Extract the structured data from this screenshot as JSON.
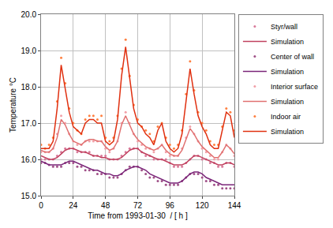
{
  "chart_data": {
    "type": "line",
    "x_label": "Time from 1993-01-30  / [ h ]",
    "y_label": "Temperature °C",
    "x": [
      0,
      3,
      6,
      9,
      12,
      15,
      18,
      21,
      24,
      27,
      30,
      33,
      36,
      39,
      42,
      45,
      48,
      51,
      54,
      57,
      60,
      63,
      66,
      69,
      72,
      75,
      78,
      81,
      84,
      87,
      90,
      93,
      96,
      99,
      102,
      105,
      108,
      111,
      114,
      117,
      120,
      123,
      126,
      129,
      132,
      135,
      138,
      141,
      144
    ],
    "xlim": [
      0,
      144
    ],
    "xticks": [
      0,
      24,
      48,
      72,
      96,
      120,
      144
    ],
    "ylim": [
      15,
      20
    ],
    "yticks": [
      {
        "value": 15,
        "label": "15.0"
      },
      {
        "value": 16,
        "label": "16.0"
      },
      {
        "value": 17,
        "label": "17.0"
      },
      {
        "value": 18,
        "label": "18.0"
      },
      {
        "value": 19,
        "label": "19.0"
      },
      {
        "value": 20,
        "label": "20.0"
      }
    ],
    "grid": true,
    "legend": "right",
    "series": [
      {
        "name": "Styr/wall",
        "type": "scatter",
        "marker": "dot",
        "color": "#d97a9a",
        "values": [
          16.0,
          16.0,
          16.0,
          16.0,
          16.1,
          16.2,
          16.3,
          16.3,
          16.3,
          16.2,
          16.2,
          16.2,
          16.2,
          16.1,
          16.1,
          16.1,
          16.1,
          16.0,
          16.0,
          16.0,
          16.1,
          16.2,
          16.3,
          16.3,
          16.3,
          16.2,
          16.1,
          16.1,
          16.0,
          16.0,
          16.0,
          16.0,
          15.9,
          15.8,
          15.8,
          15.8,
          15.9,
          16.0,
          16.1,
          16.1,
          16.0,
          16.0,
          15.9,
          15.9,
          15.8,
          15.8,
          15.9,
          15.9,
          15.8
        ]
      },
      {
        "name": "Simulation",
        "type": "line",
        "line_style": "solid",
        "color": "#c0405e",
        "values": [
          16.1,
          16.05,
          16.0,
          16.0,
          16.05,
          16.15,
          16.25,
          16.3,
          16.3,
          16.25,
          16.2,
          16.2,
          16.15,
          16.1,
          16.1,
          16.05,
          16.05,
          16.0,
          16.0,
          16.0,
          16.05,
          16.15,
          16.25,
          16.3,
          16.3,
          16.2,
          16.15,
          16.1,
          16.05,
          16.0,
          16.0,
          15.95,
          15.9,
          15.85,
          15.85,
          15.85,
          15.9,
          16.0,
          16.1,
          16.1,
          16.05,
          16.0,
          15.95,
          15.9,
          15.85,
          15.85,
          15.9,
          15.9,
          15.85
        ]
      },
      {
        "name": "Center of wall",
        "type": "scatter",
        "marker": "dot",
        "color": "#a05088",
        "values": [
          15.9,
          15.9,
          15.85,
          15.8,
          15.8,
          15.8,
          15.9,
          15.9,
          15.9,
          15.8,
          15.8,
          15.7,
          15.7,
          15.7,
          15.6,
          15.6,
          15.6,
          15.5,
          15.5,
          15.5,
          15.6,
          15.7,
          15.8,
          15.8,
          15.8,
          15.7,
          15.6,
          15.5,
          15.5,
          15.4,
          15.4,
          15.3,
          15.3,
          15.3,
          15.3,
          15.4,
          15.5,
          15.6,
          15.6,
          15.6,
          15.5,
          15.4,
          15.4,
          15.3,
          15.3,
          15.2,
          15.2,
          15.2,
          15.2
        ]
      },
      {
        "name": "Simulation",
        "type": "line",
        "line_style": "solid",
        "color": "#7a2478",
        "values": [
          15.95,
          15.9,
          15.85,
          15.85,
          15.85,
          15.85,
          15.9,
          15.95,
          15.95,
          15.9,
          15.85,
          15.8,
          15.75,
          15.7,
          15.7,
          15.65,
          15.6,
          15.6,
          15.55,
          15.55,
          15.6,
          15.7,
          15.75,
          15.8,
          15.8,
          15.75,
          15.7,
          15.6,
          15.55,
          15.5,
          15.45,
          15.4,
          15.35,
          15.35,
          15.35,
          15.4,
          15.5,
          15.6,
          15.65,
          15.65,
          15.6,
          15.5,
          15.45,
          15.4,
          15.35,
          15.3,
          15.3,
          15.3,
          15.3
        ]
      },
      {
        "name": "Interior surface",
        "type": "scatter",
        "marker": "dot",
        "color": "#f2a0a8",
        "values": [
          16.2,
          16.2,
          16.2,
          16.3,
          16.7,
          17.2,
          17.0,
          16.7,
          16.5,
          16.4,
          16.4,
          16.5,
          16.5,
          16.5,
          16.5,
          16.5,
          16.3,
          16.2,
          16.3,
          16.5,
          17.0,
          17.3,
          17.0,
          16.7,
          16.5,
          16.4,
          16.3,
          16.3,
          16.2,
          16.3,
          16.4,
          16.2,
          16.1,
          16.1,
          16.1,
          16.3,
          16.6,
          16.9,
          16.7,
          16.5,
          16.3,
          16.2,
          16.1,
          16.0,
          16.0,
          16.2,
          16.4,
          16.3,
          16.1
        ]
      },
      {
        "name": "Simulation",
        "type": "line",
        "line_style": "solid",
        "color": "#e07070",
        "values": [
          16.25,
          16.2,
          16.2,
          16.3,
          16.6,
          17.1,
          16.95,
          16.7,
          16.5,
          16.45,
          16.4,
          16.5,
          16.55,
          16.55,
          16.5,
          16.5,
          16.35,
          16.25,
          16.3,
          16.5,
          16.95,
          17.2,
          16.95,
          16.7,
          16.55,
          16.45,
          16.35,
          16.3,
          16.25,
          16.3,
          16.4,
          16.25,
          16.15,
          16.1,
          16.1,
          16.25,
          16.55,
          16.85,
          16.7,
          16.5,
          16.35,
          16.25,
          16.15,
          16.05,
          16.05,
          16.2,
          16.4,
          16.3,
          16.15
        ]
      },
      {
        "name": "Indoor air",
        "type": "scatter",
        "marker": "dot",
        "color": "#ff8040",
        "values": [
          16.4,
          16.3,
          16.4,
          16.6,
          17.6,
          18.8,
          18.1,
          17.4,
          17.0,
          16.8,
          16.7,
          17.1,
          17.2,
          17.2,
          17.1,
          17.2,
          16.6,
          16.5,
          16.6,
          17.2,
          18.5,
          19.3,
          18.3,
          17.5,
          17.1,
          16.9,
          16.8,
          16.7,
          16.5,
          16.9,
          17.0,
          16.6,
          16.4,
          16.3,
          16.4,
          16.8,
          17.8,
          18.7,
          17.9,
          17.3,
          17.0,
          16.8,
          16.5,
          16.4,
          16.4,
          16.9,
          17.4,
          17.3,
          16.8
        ]
      },
      {
        "name": "Simulation",
        "type": "line",
        "line_style": "solid",
        "color": "#e03010",
        "values": [
          16.3,
          16.3,
          16.3,
          16.5,
          17.4,
          18.6,
          17.9,
          17.3,
          16.9,
          16.8,
          16.7,
          17.0,
          17.1,
          17.1,
          17.0,
          17.0,
          16.5,
          16.4,
          16.5,
          17.1,
          18.3,
          19.1,
          18.2,
          17.4,
          17.0,
          16.9,
          16.7,
          16.6,
          16.4,
          16.8,
          17.0,
          16.5,
          16.3,
          16.2,
          16.3,
          16.7,
          17.6,
          18.5,
          17.8,
          17.2,
          16.9,
          16.7,
          16.4,
          16.3,
          16.3,
          16.8,
          17.3,
          17.2,
          16.6
        ]
      }
    ]
  }
}
